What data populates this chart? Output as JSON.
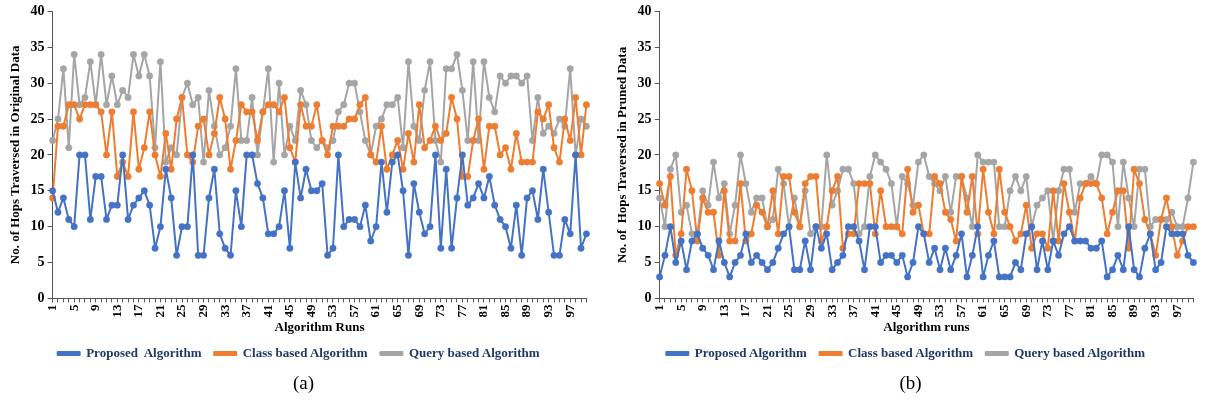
{
  "chart_data": [
    {
      "type": "line",
      "xlabel": "Algorithm Runs",
      "ylabel": "No. of Hops Traversed in Original Data",
      "annotations": [
        "(a)"
      ],
      "categories": [
        "1",
        null,
        null,
        null,
        "5",
        null,
        null,
        null,
        "9",
        null,
        null,
        null,
        "13",
        null,
        null,
        null,
        "17",
        null,
        null,
        null,
        "21",
        null,
        null,
        null,
        "25",
        null,
        null,
        null,
        "29",
        null,
        null,
        null,
        "33",
        null,
        null,
        null,
        "37",
        null,
        null,
        null,
        "41",
        null,
        null,
        null,
        "45",
        null,
        null,
        null,
        "49",
        null,
        null,
        null,
        "53",
        null,
        null,
        null,
        "57",
        null,
        null,
        null,
        "61",
        null,
        null,
        null,
        "65",
        null,
        null,
        null,
        "69",
        null,
        null,
        null,
        "73",
        null,
        null,
        null,
        "77",
        null,
        null,
        null,
        "81",
        null,
        null,
        null,
        "85",
        null,
        null,
        null,
        "89",
        null,
        null,
        null,
        "93",
        null,
        null,
        null,
        "97",
        null,
        null,
        null
      ],
      "ylim": [
        0,
        40
      ],
      "yticks": [
        0,
        5,
        10,
        15,
        20,
        25,
        30,
        35,
        40
      ],
      "grid": false,
      "legend": "bottom",
      "marker": "circle",
      "line_style": "solid",
      "series": [
        {
          "name": "Proposed  Algorithm",
          "color": "#4472c4",
          "values": [
            15,
            12,
            14,
            11,
            10,
            20,
            20,
            11,
            17,
            17,
            11,
            13,
            13,
            20,
            11,
            13,
            14,
            15,
            13,
            7,
            10,
            18,
            14,
            6,
            10,
            10,
            20,
            6,
            6,
            14,
            18,
            9,
            7,
            6,
            15,
            10,
            20,
            20,
            16,
            14,
            9,
            9,
            10,
            15,
            7,
            19,
            14,
            18,
            15,
            15,
            16,
            6,
            7,
            20,
            10,
            11,
            11,
            10,
            13,
            8,
            10,
            19,
            12,
            19,
            20,
            15,
            6,
            16,
            12,
            9,
            10,
            20,
            7,
            18,
            7,
            14,
            20,
            13,
            14,
            16,
            14,
            17,
            13,
            11,
            10,
            7,
            13,
            6,
            14,
            15,
            11,
            18,
            12,
            6,
            6,
            11,
            9,
            20,
            7,
            9
          ]
        },
        {
          "name": "Class based Algorithm",
          "color": "#ed7d31",
          "values": [
            14,
            24,
            24,
            27,
            27,
            25,
            27,
            27,
            27,
            26,
            20,
            26,
            17,
            19,
            17,
            26,
            18,
            21,
            26,
            20,
            17,
            23,
            18,
            25,
            28,
            20,
            19,
            24,
            25,
            20,
            23,
            28,
            25,
            18,
            22,
            27,
            26,
            26,
            22,
            26,
            27,
            27,
            26,
            28,
            21,
            19,
            27,
            24,
            24,
            27,
            22,
            20,
            24,
            24,
            24,
            25,
            25,
            27,
            28,
            20,
            19,
            24,
            18,
            20,
            22,
            18,
            23,
            19,
            27,
            21,
            22,
            24,
            22,
            23,
            28,
            25,
            17,
            17,
            22,
            25,
            18,
            24,
            24,
            20,
            21,
            18,
            23,
            19,
            19,
            19,
            26,
            25,
            27,
            21,
            19,
            25,
            22,
            28,
            20,
            27
          ]
        },
        {
          "name": "Query based Algorithm",
          "color": "#a5a5a5",
          "values": [
            22,
            25,
            32,
            21,
            34,
            27,
            28,
            33,
            27,
            34,
            27,
            31,
            27,
            29,
            28,
            34,
            31,
            34,
            31,
            21,
            33,
            19,
            21,
            20,
            28,
            30,
            27,
            28,
            19,
            29,
            24,
            20,
            21,
            24,
            32,
            22,
            22,
            28,
            20,
            26,
            32,
            19,
            30,
            20,
            24,
            22,
            29,
            27,
            22,
            21,
            22,
            21,
            22,
            26,
            27,
            30,
            30,
            26,
            22,
            20,
            24,
            25,
            27,
            27,
            28,
            21,
            33,
            24,
            22,
            29,
            33,
            22,
            19,
            32,
            32,
            34,
            29,
            22,
            33,
            22,
            33,
            28,
            26,
            31,
            30,
            31,
            31,
            30,
            31,
            22,
            28,
            23,
            24,
            23,
            25,
            24,
            32,
            20,
            25,
            24
          ]
        }
      ]
    },
    {
      "type": "line",
      "xlabel": "Algorithm runs",
      "ylabel": "No. of  Hops Traversed in Pruned Data",
      "annotations": [
        "(b)"
      ],
      "categories": [
        "1",
        null,
        null,
        null,
        "5",
        null,
        null,
        null,
        "9",
        null,
        null,
        null,
        "13",
        null,
        null,
        null,
        "17",
        null,
        null,
        null,
        "21",
        null,
        null,
        null,
        "25",
        null,
        null,
        null,
        "29",
        null,
        null,
        null,
        "33",
        null,
        null,
        null,
        "37",
        null,
        null,
        null,
        "41",
        null,
        null,
        null,
        "45",
        null,
        null,
        null,
        "49",
        null,
        null,
        null,
        "53",
        null,
        null,
        null,
        "57",
        null,
        null,
        null,
        "61",
        null,
        null,
        null,
        "65",
        null,
        null,
        null,
        "69",
        null,
        null,
        null,
        "73",
        null,
        null,
        null,
        "77",
        null,
        null,
        null,
        "81",
        null,
        null,
        null,
        "85",
        null,
        null,
        null,
        "89",
        null,
        null,
        null,
        "93",
        null,
        null,
        null,
        "97",
        null,
        null,
        null
      ],
      "ylim": [
        0,
        40
      ],
      "yticks": [
        0,
        5,
        10,
        15,
        20,
        25,
        30,
        35,
        40
      ],
      "grid": false,
      "legend": "bottom",
      "marker": "circle",
      "line_style": "solid",
      "series": [
        {
          "name": "Proposed Algorithm",
          "color": "#4472c4",
          "values": [
            3,
            6,
            10,
            5,
            8,
            4,
            8,
            9,
            7,
            6,
            4,
            8,
            5,
            3,
            5,
            6,
            9,
            5,
            6,
            5,
            4,
            5,
            7,
            9,
            10,
            4,
            4,
            8,
            4,
            10,
            7,
            9,
            4,
            5,
            6,
            10,
            10,
            8,
            4,
            10,
            10,
            5,
            6,
            6,
            5,
            6,
            3,
            5,
            10,
            9,
            5,
            7,
            4,
            7,
            4,
            6,
            9,
            3,
            6,
            10,
            3,
            6,
            8,
            3,
            3,
            3,
            5,
            4,
            9,
            10,
            4,
            8,
            4,
            8,
            6,
            9,
            10,
            8,
            8,
            8,
            7,
            7,
            8,
            3,
            4,
            6,
            4,
            10,
            4,
            3,
            7,
            9,
            4,
            5,
            10,
            9,
            9,
            9,
            6,
            5
          ]
        },
        {
          "name": "Class based Algorithm",
          "color": "#ed7d31",
          "values": [
            16,
            13,
            17,
            6,
            9,
            18,
            15,
            8,
            14,
            12,
            12,
            6,
            15,
            8,
            8,
            16,
            8,
            9,
            13,
            12,
            10,
            15,
            9,
            17,
            17,
            12,
            10,
            16,
            17,
            17,
            8,
            10,
            15,
            17,
            7,
            9,
            9,
            16,
            16,
            16,
            9,
            15,
            10,
            10,
            10,
            9,
            18,
            12,
            13,
            9,
            9,
            17,
            16,
            12,
            11,
            8,
            17,
            12,
            17,
            9,
            18,
            12,
            9,
            18,
            12,
            10,
            8,
            9,
            13,
            7,
            9,
            9,
            7,
            15,
            8,
            16,
            12,
            8,
            14,
            16,
            16,
            16,
            14,
            9,
            12,
            15,
            15,
            7,
            18,
            16,
            11,
            9,
            6,
            11,
            14,
            10,
            6,
            8,
            10,
            10
          ]
        },
        {
          "name": "Query based Algorithm",
          "color": "#a5a5a5",
          "values": [
            14,
            10,
            18,
            20,
            12,
            13,
            9,
            9,
            15,
            13,
            19,
            14,
            16,
            9,
            13,
            20,
            16,
            12,
            14,
            14,
            10,
            11,
            18,
            16,
            10,
            14,
            10,
            15,
            9,
            10,
            10,
            20,
            13,
            15,
            18,
            18,
            16,
            9,
            10,
            17,
            20,
            19,
            18,
            16,
            10,
            17,
            16,
            13,
            19,
            20,
            17,
            16,
            15,
            17,
            12,
            17,
            17,
            14,
            10,
            20,
            19,
            19,
            19,
            10,
            10,
            15,
            17,
            15,
            17,
            10,
            13,
            14,
            15,
            8,
            15,
            18,
            18,
            12,
            16,
            16,
            17,
            16,
            20,
            20,
            19,
            10,
            19,
            14,
            10,
            18,
            18,
            10,
            11,
            11,
            11,
            12,
            10,
            10,
            14,
            19
          ]
        }
      ]
    }
  ]
}
